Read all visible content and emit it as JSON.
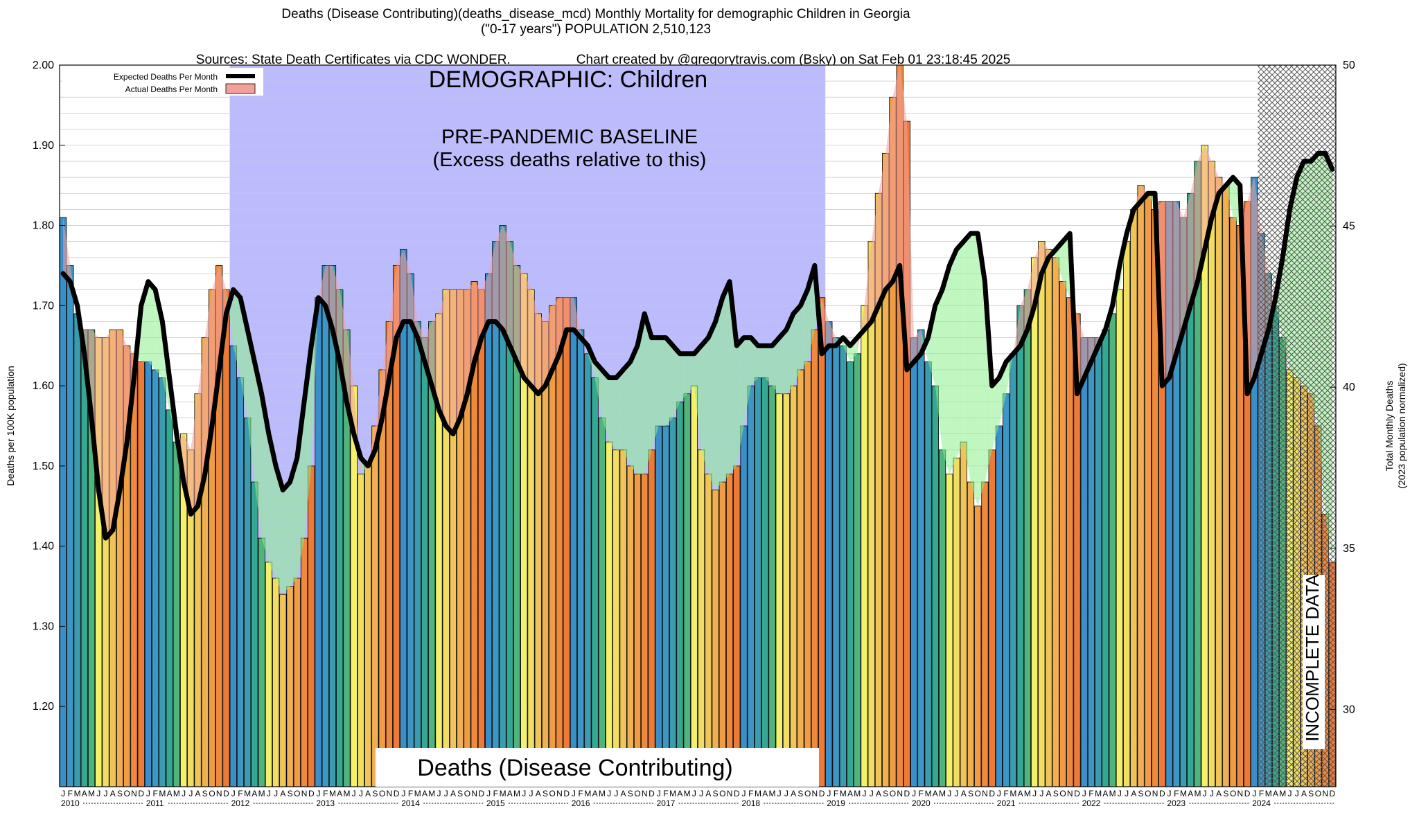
{
  "header": {
    "line1": "Deaths (Disease Contributing)(deaths_disease_mcd) Monthly Mortality for demographic Children in Georgia",
    "line2": "(\"0-17 years\") POPULATION 2,510,123",
    "line3_left": "Sources: State Death Certificates via CDC WONDER.",
    "line3_right": "Chart created by @gregorytravis.com (Bsky) on Sat Feb 01 23:18:45 2025"
  },
  "chart_data": {
    "type": "bar",
    "title": "Deaths (Disease Contributing)(deaths_disease_mcd) Monthly Mortality for demographic Children in Georgia",
    "ylabel": "Deaths per 100K population",
    "y2label_line1": "Total Monthly Deaths",
    "y2label_line2": "(2023 population normalized)",
    "ylim": [
      1.1,
      2.0
    ],
    "y2lim": [
      27.6,
      50
    ],
    "yticks": [
      "1.20",
      "1.30",
      "1.40",
      "1.50",
      "1.60",
      "1.70",
      "1.80",
      "1.90",
      "2.00"
    ],
    "y2ticks": [
      "30",
      "35",
      "40",
      "45",
      "50"
    ],
    "month_letters": [
      "J",
      "F",
      "M",
      "A",
      "M",
      "J",
      "J",
      "A",
      "S",
      "O",
      "N",
      "D"
    ],
    "years": [
      "2010",
      "2011",
      "2012",
      "2013",
      "2014",
      "2015",
      "2016",
      "2017",
      "2018",
      "2019",
      "2020",
      "2021",
      "2022",
      "2023",
      "2024"
    ],
    "legend": [
      {
        "name": "Expected Deaths Per Month",
        "color": "#000000"
      },
      {
        "name": "Actual Deaths Per Month",
        "color": "#f4a09a"
      }
    ],
    "annotations": {
      "demographic": "DEMOGRAPHIC: Children",
      "baseline_line1": "PRE-PANDEMIC BASELINE",
      "baseline_line2": "(Excess deaths relative to this)",
      "bottom_label": "Deaths (Disease Contributing)",
      "incomplete": "INCOMPLETE DATA"
    },
    "baseline_span": [
      "2012-01",
      "2018-12"
    ],
    "incomplete_span": [
      "2024-02",
      "2024-12"
    ],
    "colors": {
      "baseline_fill": "#bcbcfc",
      "excess_fill": "#f4a09a",
      "deficit_fill": "#8cf08c",
      "hatch": "#555555",
      "expected_line": "#000000"
    },
    "series": [
      {
        "name": "Actual Deaths Per Month",
        "unit": "deaths per 100K",
        "start": "2010-01",
        "values": [
          1.81,
          1.75,
          1.69,
          1.67,
          1.67,
          1.66,
          1.66,
          1.67,
          1.67,
          1.65,
          1.64,
          1.63,
          1.63,
          1.62,
          1.61,
          1.57,
          1.53,
          1.54,
          1.52,
          1.59,
          1.66,
          1.72,
          1.75,
          1.72,
          1.65,
          1.61,
          1.56,
          1.48,
          1.41,
          1.38,
          1.36,
          1.34,
          1.35,
          1.36,
          1.41,
          1.5,
          1.71,
          1.75,
          1.75,
          1.72,
          1.67,
          1.6,
          1.49,
          1.5,
          1.55,
          1.62,
          1.68,
          1.75,
          1.77,
          1.74,
          1.68,
          1.66,
          1.68,
          1.69,
          1.72,
          1.72,
          1.72,
          1.72,
          1.73,
          1.72,
          1.74,
          1.78,
          1.8,
          1.78,
          1.75,
          1.74,
          1.72,
          1.69,
          1.68,
          1.7,
          1.71,
          1.71,
          1.71,
          1.67,
          1.64,
          1.61,
          1.56,
          1.53,
          1.52,
          1.52,
          1.5,
          1.49,
          1.49,
          1.52,
          1.55,
          1.55,
          1.56,
          1.58,
          1.59,
          1.6,
          1.52,
          1.49,
          1.47,
          1.48,
          1.49,
          1.5,
          1.55,
          1.6,
          1.61,
          1.61,
          1.6,
          1.59,
          1.59,
          1.6,
          1.62,
          1.63,
          1.67,
          1.71,
          1.68,
          1.66,
          1.65,
          1.63,
          1.64,
          1.7,
          1.78,
          1.84,
          1.89,
          1.96,
          2.0,
          1.93,
          1.66,
          1.67,
          1.63,
          1.6,
          1.52,
          1.49,
          1.51,
          1.53,
          1.48,
          1.45,
          1.48,
          1.52,
          1.55,
          1.59,
          1.64,
          1.7,
          1.72,
          1.76,
          1.78,
          1.77,
          1.76,
          1.73,
          1.71,
          1.69,
          1.66,
          1.66,
          1.66,
          1.67,
          1.69,
          1.72,
          1.78,
          1.82,
          1.85,
          1.84,
          1.82,
          1.83,
          1.83,
          1.83,
          1.81,
          1.84,
          1.88,
          1.9,
          1.88,
          1.86,
          1.85,
          1.81,
          1.8,
          1.83,
          1.86,
          1.79,
          1.74,
          1.7,
          1.66,
          1.62,
          1.61,
          1.6,
          1.59,
          1.55,
          1.44,
          1.38
        ]
      },
      {
        "name": "Expected Deaths Per Month",
        "unit": "deaths per 100K",
        "start": "2010-01",
        "values": [
          1.74,
          1.73,
          1.7,
          1.64,
          1.56,
          1.47,
          1.41,
          1.42,
          1.47,
          1.53,
          1.61,
          1.7,
          1.73,
          1.72,
          1.68,
          1.61,
          1.54,
          1.48,
          1.44,
          1.45,
          1.49,
          1.55,
          1.62,
          1.69,
          1.72,
          1.71,
          1.67,
          1.63,
          1.59,
          1.54,
          1.5,
          1.47,
          1.48,
          1.51,
          1.58,
          1.65,
          1.71,
          1.7,
          1.67,
          1.63,
          1.58,
          1.54,
          1.51,
          1.5,
          1.52,
          1.56,
          1.61,
          1.66,
          1.68,
          1.68,
          1.66,
          1.63,
          1.6,
          1.57,
          1.55,
          1.54,
          1.56,
          1.59,
          1.63,
          1.66,
          1.68,
          1.68,
          1.67,
          1.65,
          1.63,
          1.61,
          1.6,
          1.59,
          1.6,
          1.62,
          1.64,
          1.67,
          1.67,
          1.66,
          1.65,
          1.63,
          1.62,
          1.61,
          1.61,
          1.62,
          1.63,
          1.65,
          1.69,
          1.66,
          1.66,
          1.66,
          1.65,
          1.64,
          1.64,
          1.64,
          1.65,
          1.66,
          1.68,
          1.71,
          1.73,
          1.65,
          1.66,
          1.66,
          1.65,
          1.65,
          1.65,
          1.66,
          1.67,
          1.69,
          1.7,
          1.72,
          1.75,
          1.64,
          1.65,
          1.65,
          1.66,
          1.65,
          1.66,
          1.67,
          1.68,
          1.7,
          1.72,
          1.73,
          1.75,
          1.62,
          1.63,
          1.64,
          1.66,
          1.7,
          1.72,
          1.75,
          1.77,
          1.78,
          1.79,
          1.79,
          1.73,
          1.6,
          1.61,
          1.63,
          1.64,
          1.65,
          1.67,
          1.7,
          1.74,
          1.76,
          1.77,
          1.78,
          1.79,
          1.59,
          1.61,
          1.63,
          1.65,
          1.67,
          1.7,
          1.75,
          1.79,
          1.82,
          1.83,
          1.84,
          1.84,
          1.6,
          1.61,
          1.64,
          1.67,
          1.7,
          1.73,
          1.77,
          1.81,
          1.84,
          1.85,
          1.86,
          1.85,
          1.59,
          1.61,
          1.64,
          1.67,
          1.71,
          1.76,
          1.82,
          1.86,
          1.88,
          1.88,
          1.89,
          1.89,
          1.87
        ]
      }
    ]
  }
}
